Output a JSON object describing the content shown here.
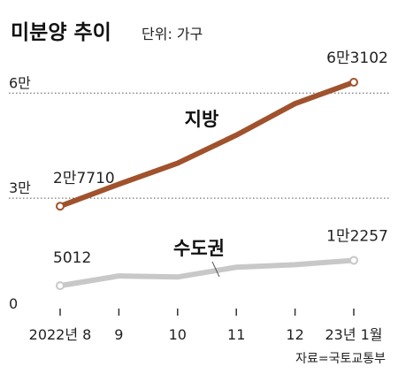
{
  "chart_data": {
    "type": "line",
    "title": "미분양 추이",
    "subtitle": "단위: 가구",
    "source": "자료=국토교통부",
    "ylim": [
      0,
      64000
    ],
    "y_ticks": [
      {
        "value": 0,
        "label": "0"
      },
      {
        "value": 30000,
        "label": "3만"
      },
      {
        "value": 60000,
        "label": "6만"
      }
    ],
    "categories": [
      "2022년 8",
      "9",
      "10",
      "11",
      "12",
      "23년 1월"
    ],
    "grid": "dotted lines at 3만 and 6만",
    "series": [
      {
        "name": "지방",
        "color": "#a0522d",
        "values": [
          27710,
          34000,
          40000,
          48000,
          57000,
          63102
        ],
        "start_label": "2만7710",
        "end_label": "6만3102"
      },
      {
        "name": "수도권",
        "color": "#c8c8c8",
        "values": [
          5012,
          7800,
          7500,
          10300,
          11000,
          12257
        ],
        "start_label": "5012",
        "end_label": "1만2257"
      }
    ]
  }
}
